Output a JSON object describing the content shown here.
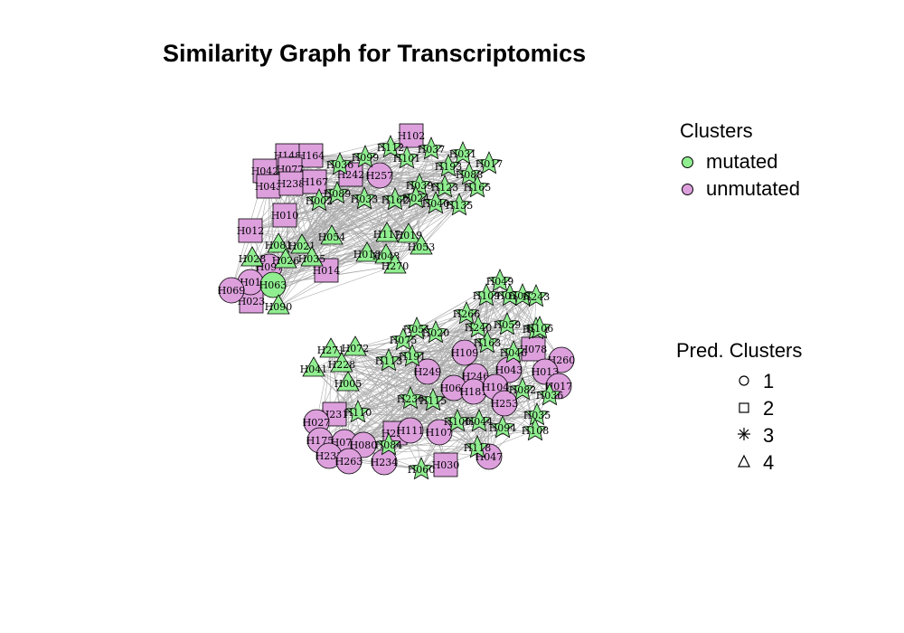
{
  "title": "Similarity Graph for Transcriptomics",
  "legend_clusters": {
    "title": "Clusters",
    "items": [
      {
        "label": "mutated",
        "color": "#90ee90"
      },
      {
        "label": "unmutated",
        "color": "#dda0dd"
      }
    ]
  },
  "legend_pred": {
    "title": "Pred. Clusters",
    "items": [
      {
        "label": "1",
        "shape": "circle"
      },
      {
        "label": "2",
        "shape": "square"
      },
      {
        "label": "3",
        "shape": "star"
      },
      {
        "label": "4",
        "shape": "triangle"
      }
    ]
  },
  "colors": {
    "mutated": "#90ee90",
    "unmutated": "#dda0dd",
    "edge": "#aaaaaa"
  },
  "nodes": {
    "top": [
      {
        "label": "H102",
        "shape": "square",
        "group": "unmutated"
      },
      {
        "label": "H148",
        "shape": "square",
        "group": "unmutated"
      },
      {
        "label": "H164",
        "shape": "square",
        "group": "unmutated"
      },
      {
        "label": "H042",
        "shape": "square",
        "group": "unmutated"
      },
      {
        "label": "H077",
        "shape": "square",
        "group": "unmutated"
      },
      {
        "label": "H043",
        "shape": "square",
        "group": "unmutated"
      },
      {
        "label": "H238",
        "shape": "square",
        "group": "unmutated"
      },
      {
        "label": "H167",
        "shape": "square",
        "group": "unmutated"
      },
      {
        "label": "H242",
        "shape": "square",
        "group": "unmutated"
      },
      {
        "label": "H010",
        "shape": "square",
        "group": "unmutated"
      },
      {
        "label": "H012",
        "shape": "square",
        "group": "unmutated"
      },
      {
        "label": "H014",
        "shape": "square",
        "group": "unmutated"
      },
      {
        "label": "H023",
        "shape": "square",
        "group": "unmutated"
      },
      {
        "label": "H257",
        "shape": "circle",
        "group": "unmutated"
      },
      {
        "label": "H097",
        "shape": "circle",
        "group": "unmutated"
      },
      {
        "label": "H01",
        "shape": "circle",
        "group": "unmutated"
      },
      {
        "label": "H069",
        "shape": "circle",
        "group": "unmutated"
      },
      {
        "label": "H063",
        "shape": "circle",
        "group": "mutated"
      },
      {
        "label": "H112",
        "shape": "star",
        "group": "mutated"
      },
      {
        "label": "H037",
        "shape": "star",
        "group": "mutated"
      },
      {
        "label": "H031",
        "shape": "star",
        "group": "mutated"
      },
      {
        "label": "H017",
        "shape": "star",
        "group": "mutated"
      },
      {
        "label": "H101",
        "shape": "star",
        "group": "mutated"
      },
      {
        "label": "H036",
        "shape": "star",
        "group": "mutated"
      },
      {
        "label": "H099",
        "shape": "star",
        "group": "mutated"
      },
      {
        "label": "H193",
        "shape": "star",
        "group": "mutated"
      },
      {
        "label": "H088",
        "shape": "star",
        "group": "mutated"
      },
      {
        "label": "H039",
        "shape": "star",
        "group": "mutated"
      },
      {
        "label": "H123",
        "shape": "star",
        "group": "mutated"
      },
      {
        "label": "H165",
        "shape": "star",
        "group": "mutated"
      },
      {
        "label": "H089",
        "shape": "star",
        "group": "mutated"
      },
      {
        "label": "H002",
        "shape": "star",
        "group": "mutated"
      },
      {
        "label": "H033",
        "shape": "star",
        "group": "mutated"
      },
      {
        "label": "H162",
        "shape": "star",
        "group": "mutated"
      },
      {
        "label": "H024",
        "shape": "star",
        "group": "mutated"
      },
      {
        "label": "H040",
        "shape": "star",
        "group": "mutated"
      },
      {
        "label": "H135",
        "shape": "star",
        "group": "mutated"
      },
      {
        "label": "H054",
        "shape": "triangle",
        "group": "mutated"
      },
      {
        "label": "H117",
        "shape": "triangle",
        "group": "mutated"
      },
      {
        "label": "H019",
        "shape": "triangle",
        "group": "mutated"
      },
      {
        "label": "H053",
        "shape": "triangle",
        "group": "mutated"
      },
      {
        "label": "H081",
        "shape": "triangle",
        "group": "mutated"
      },
      {
        "label": "H021",
        "shape": "triangle",
        "group": "mutated"
      },
      {
        "label": "H028",
        "shape": "triangle",
        "group": "mutated"
      },
      {
        "label": "H026",
        "shape": "triangle",
        "group": "mutated"
      },
      {
        "label": "H035",
        "shape": "triangle",
        "group": "mutated"
      },
      {
        "label": "H018",
        "shape": "triangle",
        "group": "mutated"
      },
      {
        "label": "H048",
        "shape": "triangle",
        "group": "mutated"
      },
      {
        "label": "H270",
        "shape": "triangle",
        "group": "mutated"
      },
      {
        "label": "H090",
        "shape": "triangle",
        "group": "mutated"
      }
    ],
    "bottom": [
      {
        "label": "H078",
        "shape": "square",
        "group": "unmutated"
      },
      {
        "label": "H231",
        "shape": "square",
        "group": "unmutated"
      },
      {
        "label": "H251",
        "shape": "square",
        "group": "unmutated"
      },
      {
        "label": "H030",
        "shape": "square",
        "group": "unmutated"
      },
      {
        "label": "H260",
        "shape": "circle",
        "group": "unmutated"
      },
      {
        "label": "H109",
        "shape": "circle",
        "group": "unmutated"
      },
      {
        "label": "H249",
        "shape": "circle",
        "group": "unmutated"
      },
      {
        "label": "H246",
        "shape": "circle",
        "group": "unmutated"
      },
      {
        "label": "H043",
        "shape": "circle",
        "group": "unmutated"
      },
      {
        "label": "H013",
        "shape": "circle",
        "group": "unmutated"
      },
      {
        "label": "H068",
        "shape": "circle",
        "group": "unmutated"
      },
      {
        "label": "H181",
        "shape": "circle",
        "group": "unmutated"
      },
      {
        "label": "H104",
        "shape": "circle",
        "group": "unmutated"
      },
      {
        "label": "H017",
        "shape": "circle",
        "group": "unmutated"
      },
      {
        "label": "H253",
        "shape": "circle",
        "group": "unmutated"
      },
      {
        "label": "H027",
        "shape": "circle",
        "group": "unmutated"
      },
      {
        "label": "H111",
        "shape": "circle",
        "group": "unmutated"
      },
      {
        "label": "H107",
        "shape": "circle",
        "group": "unmutated"
      },
      {
        "label": "H175",
        "shape": "circle",
        "group": "unmutated"
      },
      {
        "label": "H076",
        "shape": "circle",
        "group": "unmutated"
      },
      {
        "label": "H080",
        "shape": "circle",
        "group": "unmutated"
      },
      {
        "label": "H233",
        "shape": "circle",
        "group": "unmutated"
      },
      {
        "label": "H263",
        "shape": "circle",
        "group": "unmutated"
      },
      {
        "label": "H234",
        "shape": "circle",
        "group": "unmutated"
      },
      {
        "label": "H047",
        "shape": "circle",
        "group": "unmutated"
      },
      {
        "label": "H049",
        "shape": "star",
        "group": "mutated"
      },
      {
        "label": "H109",
        "shape": "star",
        "group": "mutated"
      },
      {
        "label": "H013",
        "shape": "star",
        "group": "mutated"
      },
      {
        "label": "H083",
        "shape": "star",
        "group": "mutated"
      },
      {
        "label": "H243",
        "shape": "star",
        "group": "mutated"
      },
      {
        "label": "H266",
        "shape": "star",
        "group": "mutated"
      },
      {
        "label": "H240",
        "shape": "star",
        "group": "mutated"
      },
      {
        "label": "H059",
        "shape": "star",
        "group": "mutated"
      },
      {
        "label": "H021",
        "shape": "star",
        "group": "mutated"
      },
      {
        "label": "H051",
        "shape": "star",
        "group": "mutated"
      },
      {
        "label": "H020",
        "shape": "star",
        "group": "mutated"
      },
      {
        "label": "H075",
        "shape": "star",
        "group": "mutated"
      },
      {
        "label": "H163",
        "shape": "star",
        "group": "mutated"
      },
      {
        "label": "H046",
        "shape": "star",
        "group": "mutated"
      },
      {
        "label": "H191",
        "shape": "star",
        "group": "mutated"
      },
      {
        "label": "H113",
        "shape": "star",
        "group": "mutated"
      },
      {
        "label": "H082",
        "shape": "star",
        "group": "mutated"
      },
      {
        "label": "H036",
        "shape": "star",
        "group": "mutated"
      },
      {
        "label": "H115",
        "shape": "star",
        "group": "mutated"
      },
      {
        "label": "H035",
        "shape": "star",
        "group": "mutated"
      },
      {
        "label": "H108",
        "shape": "star",
        "group": "mutated"
      },
      {
        "label": "H100",
        "shape": "star",
        "group": "mutated"
      },
      {
        "label": "H044",
        "shape": "star",
        "group": "mutated"
      },
      {
        "label": "H094",
        "shape": "star",
        "group": "mutated"
      },
      {
        "label": "H118",
        "shape": "star",
        "group": "mutated"
      },
      {
        "label": "H084",
        "shape": "star",
        "group": "mutated"
      },
      {
        "label": "H060",
        "shape": "star",
        "group": "mutated"
      },
      {
        "label": "H110",
        "shape": "star",
        "group": "mutated"
      },
      {
        "label": "H236",
        "shape": "star",
        "group": "mutated"
      },
      {
        "label": "H106",
        "shape": "star",
        "group": "mutated"
      },
      {
        "label": "H271",
        "shape": "triangle",
        "group": "mutated"
      },
      {
        "label": "H072",
        "shape": "triangle",
        "group": "mutated"
      },
      {
        "label": "H228",
        "shape": "triangle",
        "group": "mutated"
      },
      {
        "label": "H041",
        "shape": "triangle",
        "group": "mutated"
      },
      {
        "label": "H005",
        "shape": "triangle",
        "group": "mutated"
      }
    ]
  }
}
